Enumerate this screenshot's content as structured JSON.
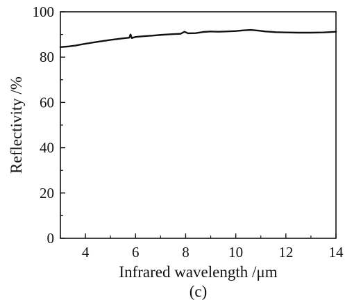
{
  "chart_data": {
    "type": "line",
    "title": "",
    "xlabel": "Infrared wavelength /μm",
    "ylabel": "Reflectivity /%",
    "panel_label": "(c)",
    "xlim": [
      3,
      14
    ],
    "ylim": [
      0,
      100
    ],
    "x_ticks": [
      4,
      6,
      8,
      10,
      12,
      14
    ],
    "x_tick_labels": [
      "4",
      "6",
      "8",
      "10",
      "12",
      "14"
    ],
    "y_ticks": [
      0,
      20,
      40,
      60,
      80,
      100
    ],
    "y_tick_labels": [
      "0",
      "20",
      "40",
      "60",
      "80",
      "100"
    ],
    "grid": false,
    "legend": "none",
    "line_color": "#111111",
    "series": [
      {
        "x": [
          3.0,
          3.3,
          3.6,
          4.0,
          4.5,
          5.0,
          5.5,
          5.75,
          5.8,
          5.85,
          5.9,
          6.0,
          6.3,
          6.7,
          7.0,
          7.4,
          7.8,
          7.95,
          8.1,
          8.4,
          8.7,
          9.0,
          9.3,
          9.6,
          10.0,
          10.3,
          10.6,
          10.9,
          11.2,
          11.6,
          12.0,
          12.5,
          13.0,
          13.5,
          14.0
        ],
        "y": [
          84.4,
          84.7,
          85.1,
          85.9,
          86.8,
          87.6,
          88.3,
          88.6,
          90.0,
          88.4,
          88.6,
          88.9,
          89.2,
          89.5,
          89.8,
          90.1,
          90.3,
          91.2,
          90.5,
          90.6,
          91.1,
          91.3,
          91.2,
          91.3,
          91.5,
          91.8,
          92.0,
          91.7,
          91.3,
          91.0,
          90.9,
          90.8,
          90.8,
          90.9,
          91.2
        ]
      }
    ]
  }
}
